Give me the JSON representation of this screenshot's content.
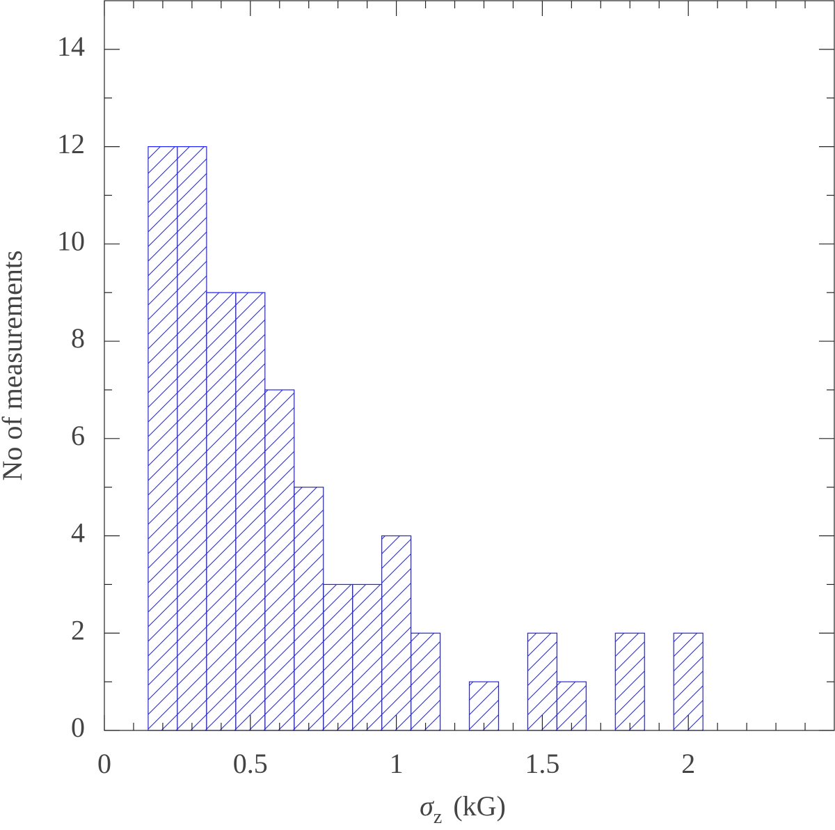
{
  "chart_data": {
    "type": "histogram",
    "xlabel": {
      "symbol": "σ",
      "subscript": "z",
      "unit": "(kG)"
    },
    "ylabel": "No of measurements",
    "bins": [
      0.15,
      0.25,
      0.35,
      0.45,
      0.55,
      0.65,
      0.75,
      0.85,
      0.95,
      1.05,
      1.15,
      1.25,
      1.35,
      1.45,
      1.55,
      1.65,
      1.75,
      1.85,
      1.95,
      2.05
    ],
    "values": [
      12,
      12,
      9,
      9,
      7,
      5,
      3,
      3,
      4,
      2,
      0,
      1,
      0,
      2,
      1,
      0,
      2,
      0,
      2
    ],
    "color": "#2020ff",
    "xlim": [
      0,
      2.5
    ],
    "ylim": [
      0,
      15
    ],
    "xticks": [
      0,
      0.5,
      1,
      1.5,
      2
    ],
    "yticks": [
      0,
      2,
      4,
      6,
      8,
      10,
      12,
      14
    ],
    "xminorticks": [
      0.1,
      0.2,
      0.3,
      0.4,
      0.6,
      0.7,
      0.8,
      0.9,
      1.1,
      1.2,
      1.3,
      1.4,
      1.6,
      1.7,
      1.8,
      1.9,
      2.1,
      2.2,
      2.3,
      2.4
    ],
    "yminorticks": [
      1,
      3,
      5,
      7,
      9,
      11,
      13
    ],
    "hatch": true
  }
}
